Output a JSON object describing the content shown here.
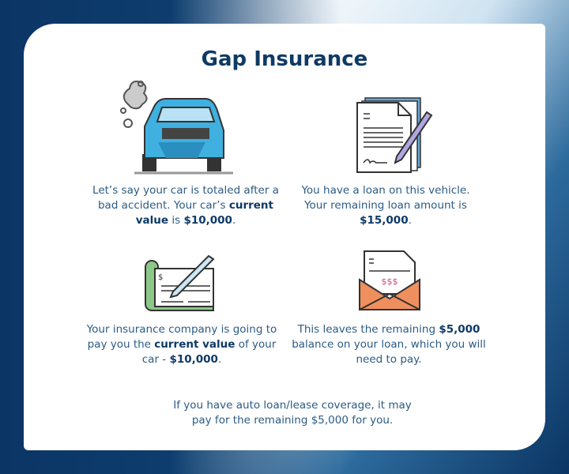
{
  "title": "Gap Insurance",
  "steps": [
    {
      "icon": "wrecked-car-icon",
      "segments": [
        {
          "text": "Let’s say your car is totaled after a bad accident. Your car’s ",
          "bold": false
        },
        {
          "text": "current value",
          "bold": true
        },
        {
          "text": " is ",
          "bold": false
        },
        {
          "text": "$10,000",
          "bold": true
        },
        {
          "text": ".",
          "bold": false
        }
      ]
    },
    {
      "icon": "signed-loan-document-icon",
      "segments": [
        {
          "text": "You have a loan on this vehicle. Your remaining loan amount is ",
          "bold": false
        },
        {
          "text": "$15,000",
          "bold": true
        },
        {
          "text": ".",
          "bold": false
        }
      ]
    },
    {
      "icon": "check-and-pen-icon",
      "segments": [
        {
          "text": "Your insurance company is going to pay you the ",
          "bold": false
        },
        {
          "text": "current value",
          "bold": true
        },
        {
          "text": " of your car - ",
          "bold": false
        },
        {
          "text": "$10,000",
          "bold": true
        },
        {
          "text": ".",
          "bold": false
        }
      ]
    },
    {
      "icon": "bill-envelope-icon",
      "segments": [
        {
          "text": "This leaves the remaining ",
          "bold": false
        },
        {
          "text": "$5,000",
          "bold": true
        },
        {
          "text": " balance on your loan, which you will need to pay.",
          "bold": false
        }
      ]
    }
  ],
  "footer": "If you have auto loan/lease coverage, it may pay for the remaining $5,000 for you.",
  "colors": {
    "title": "#0e3a66",
    "text": "#2c5b85",
    "car": "#3fb0e0",
    "check": "#8cc887",
    "envelope": "#ef8f5d",
    "pen": "#b0a6e0"
  }
}
